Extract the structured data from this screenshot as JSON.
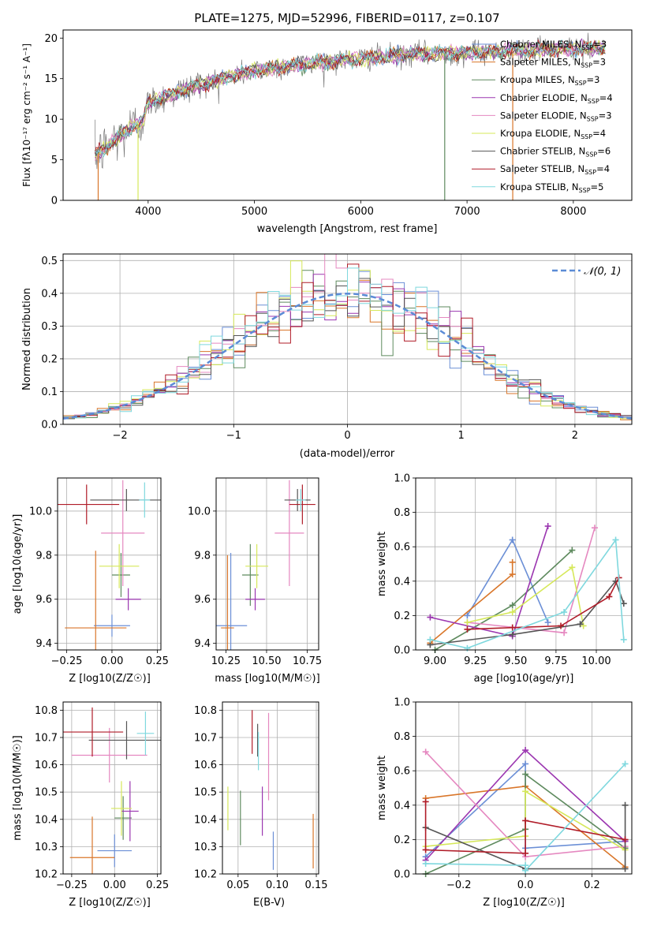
{
  "title": "PLATE=1275, MJD=52996, FIBERID=0117, z=0.107",
  "colors": [
    "#6b8fd6",
    "#d9762a",
    "#5e8a5e",
    "#9b36b0",
    "#e588c0",
    "#d6e85a",
    "#555555",
    "#b01c28",
    "#7fd8de"
  ],
  "chart_data": [
    {
      "id": "spectrum",
      "type": "line",
      "title": "PLATE=1275, MJD=52996, FIBERID=0117, z=0.107",
      "xlabel": "wavelength [Angstrom, rest frame]",
      "ylabel": "Flux [fλ10⁻¹⁷ erg cm⁻² s⁻¹ A⁻¹]",
      "xlim": [
        3200,
        8550
      ],
      "ylim": [
        0,
        21
      ],
      "xticks": [
        4000,
        5000,
        6000,
        7000,
        8000
      ],
      "yticks": [
        0,
        5,
        10,
        15,
        20
      ],
      "legend_position": "top-right",
      "continuum": {
        "x": [
          3500,
          3700,
          3900,
          3950,
          4000,
          4300,
          4600,
          5000,
          5300,
          5600,
          6000,
          6500,
          7000,
          7500,
          8000,
          8300
        ],
        "y": [
          5.5,
          7.5,
          9.5,
          9.8,
          12.0,
          13.5,
          14.7,
          16.0,
          16.5,
          17.0,
          17.5,
          18.0,
          18.2,
          18.5,
          18.7,
          18.8
        ]
      },
      "series": [
        {
          "name": "Chabrier MILES, N_SSP=3"
        },
        {
          "name": "Salpeter MILES, N_SSP=3"
        },
        {
          "name": "Kroupa MILES, N_SSP=3"
        },
        {
          "name": "Chabrier ELODIE, N_SSP=4"
        },
        {
          "name": "Salpeter ELODIE, N_SSP=3"
        },
        {
          "name": "Kroupa ELODIE, N_SSP=4"
        },
        {
          "name": "Chabrier STELIB, N_SSP=6"
        },
        {
          "name": "Salpeter STELIB, N_SSP=4"
        },
        {
          "name": "Kroupa STELIB, N_SSP=5"
        }
      ]
    },
    {
      "id": "residuals",
      "type": "area",
      "xlabel": "(data-model)/error",
      "ylabel": "Normed distribution",
      "xlim": [
        -2.5,
        2.5
      ],
      "ylim": [
        0,
        0.52
      ],
      "xticks": [
        -2,
        -1,
        0,
        1,
        2
      ],
      "yticks": [
        0.0,
        0.1,
        0.2,
        0.3,
        0.4,
        0.5
      ],
      "bin_width": 0.1,
      "grid": true,
      "legend_position": "top-right",
      "gauss_label": "𝒩(0, 1)"
    },
    {
      "id": "z-age",
      "type": "scatter",
      "xlabel": "Z [log10(Z/Z☉)]",
      "ylabel": "age  [log10(age/yr)]",
      "xlim": [
        -0.3,
        0.27
      ],
      "ylim": [
        9.37,
        10.15
      ],
      "xticks": [
        -0.25,
        0.0,
        0.25
      ],
      "yticks": [
        9.4,
        9.6,
        9.8,
        10.0
      ],
      "grid": true,
      "points": [
        {
          "x": 0.0,
          "xerr": 0.1,
          "y": 9.48,
          "yerr": 0.05
        },
        {
          "x": -0.09,
          "xerr": 0.17,
          "y": 9.47,
          "yerr": 0.35
        },
        {
          "x": 0.05,
          "xerr": 0.05,
          "y": 9.71,
          "yerr": 0.1
        },
        {
          "x": 0.09,
          "xerr": 0.07,
          "y": 9.6,
          "yerr": 0.05
        },
        {
          "x": 0.06,
          "xerr": 0.12,
          "y": 9.9,
          "yerr": 0.24
        },
        {
          "x": 0.04,
          "xerr": 0.11,
          "y": 9.75,
          "yerr": 0.1
        },
        {
          "x": 0.08,
          "xerr": 0.2,
          "y": 10.05,
          "yerr": 0.05
        },
        {
          "x": -0.14,
          "xerr": 0.18,
          "y": 10.03,
          "yerr": 0.09
        },
        {
          "x": 0.18,
          "xerr": 0.03,
          "y": 10.05,
          "yerr": 0.08
        }
      ]
    },
    {
      "id": "mass-age",
      "type": "scatter",
      "xlabel": "mass [log10(M/M☉)]",
      "xlim": [
        10.19,
        10.82
      ],
      "ylim": [
        9.37,
        10.15
      ],
      "xticks": [
        10.25,
        10.5,
        10.75
      ],
      "yticks": [
        9.4,
        9.6,
        9.8,
        10.0
      ],
      "grid": true,
      "points": [
        {
          "x": 10.28,
          "xerr": 0.1,
          "y": 9.48,
          "yerr": 0.33
        },
        {
          "x": 10.26,
          "xerr": 0.04,
          "y": 9.47,
          "yerr": 0.33
        },
        {
          "x": 10.4,
          "xerr": 0.05,
          "y": 9.71,
          "yerr": 0.14
        },
        {
          "x": 10.43,
          "xerr": 0.06,
          "y": 9.6,
          "yerr": 0.05
        },
        {
          "x": 10.64,
          "xerr": 0.09,
          "y": 9.9,
          "yerr": 0.24
        },
        {
          "x": 10.44,
          "xerr": 0.07,
          "y": 9.75,
          "yerr": 0.1
        },
        {
          "x": 10.69,
          "xerr": 0.08,
          "y": 10.05,
          "yerr": 0.05
        },
        {
          "x": 10.72,
          "xerr": 0.08,
          "y": 10.03,
          "yerr": 0.09
        },
        {
          "x": 10.71,
          "xerr": 0.03,
          "y": 10.05,
          "yerr": 0.05
        }
      ]
    },
    {
      "id": "weight-age",
      "type": "line",
      "xlabel": "age  [log10(age/yr)]",
      "ylabel": "mass weight",
      "xlim": [
        8.88,
        10.22
      ],
      "ylim": [
        0,
        1.0
      ],
      "xticks": [
        9.0,
        9.25,
        9.5,
        9.75,
        10.0
      ],
      "yticks": [
        0.0,
        0.2,
        0.4,
        0.6,
        0.8,
        1.0
      ],
      "grid": true,
      "series": [
        {
          "x": [
            9.2,
            9.48,
            9.7
          ],
          "y": [
            0.2,
            0.64,
            0.16
          ]
        },
        {
          "x": [
            8.97,
            9.48,
            9.48
          ],
          "y": [
            0.04,
            0.44,
            0.51
          ]
        },
        {
          "x": [
            9.0,
            9.48,
            9.85
          ],
          "y": [
            0.0,
            0.26,
            0.58
          ]
        },
        {
          "x": [
            8.97,
            9.48,
            9.7
          ],
          "y": [
            0.19,
            0.08,
            0.72
          ]
        },
        {
          "x": [
            9.2,
            9.8,
            9.99
          ],
          "y": [
            0.16,
            0.1,
            0.71
          ]
        },
        {
          "x": [
            9.2,
            9.48,
            9.85,
            9.92
          ],
          "y": [
            0.16,
            0.22,
            0.48,
            0.14
          ]
        },
        {
          "x": [
            8.97,
            9.48,
            9.9,
            10.12,
            10.17
          ],
          "y": [
            0.03,
            0.09,
            0.15,
            0.4,
            0.27
          ]
        },
        {
          "x": [
            9.2,
            9.48,
            9.78,
            10.08,
            10.14
          ],
          "y": [
            0.12,
            0.13,
            0.14,
            0.31,
            0.42
          ]
        },
        {
          "x": [
            8.97,
            9.2,
            9.8,
            10.12,
            10.17
          ],
          "y": [
            0.06,
            0.01,
            0.22,
            0.64,
            0.06
          ]
        }
      ]
    },
    {
      "id": "z-mass",
      "type": "scatter",
      "xlabel": "Z [log10(Z/Z☉)]",
      "ylabel": "mass [log10(M/M☉)]",
      "xlim": [
        -0.3,
        0.27
      ],
      "ylim": [
        10.2,
        10.83
      ],
      "xticks": [
        -0.25,
        0.0,
        0.25
      ],
      "yticks": [
        10.2,
        10.3,
        10.4,
        10.5,
        10.6,
        10.7,
        10.8
      ],
      "grid": true,
      "points": [
        {
          "x": 0.0,
          "xerr": 0.1,
          "y": 10.285,
          "yerr": 0.06
        },
        {
          "x": -0.13,
          "xerr": 0.13,
          "y": 10.26,
          "yerr": 0.15
        },
        {
          "x": 0.05,
          "xerr": 0.05,
          "y": 10.405,
          "yerr": 0.08
        },
        {
          "x": 0.09,
          "xerr": 0.05,
          "y": 10.43,
          "yerr": 0.11
        },
        {
          "x": -0.03,
          "xerr": 0.22,
          "y": 10.635,
          "yerr": 0.1
        },
        {
          "x": 0.04,
          "xerr": 0.06,
          "y": 10.44,
          "yerr": 0.1
        },
        {
          "x": 0.07,
          "xerr": 0.22,
          "y": 10.69,
          "yerr": 0.07
        },
        {
          "x": -0.13,
          "xerr": 0.18,
          "y": 10.72,
          "yerr": 0.09
        },
        {
          "x": 0.18,
          "xerr": 0.05,
          "y": 10.715,
          "yerr": 0.08
        }
      ]
    },
    {
      "id": "ebv-mass",
      "type": "scatter",
      "xlabel": "E(B-V)",
      "xlim": [
        0.03,
        0.153
      ],
      "ylim": [
        10.2,
        10.83
      ],
      "xticks": [
        0.05,
        0.1,
        0.15
      ],
      "yticks": [
        10.2,
        10.3,
        10.4,
        10.5,
        10.6,
        10.7,
        10.8
      ],
      "grid": true,
      "points": [
        {
          "x": 0.095,
          "y": 10.285,
          "yerr": 0.07
        },
        {
          "x": 0.146,
          "y": 10.32,
          "yerr": 0.1
        },
        {
          "x": 0.053,
          "y": 10.405,
          "yerr": 0.1
        },
        {
          "x": 0.081,
          "y": 10.43,
          "yerr": 0.09
        },
        {
          "x": 0.089,
          "y": 10.63,
          "yerr": 0.16
        },
        {
          "x": 0.037,
          "y": 10.44,
          "yerr": 0.08
        },
        {
          "x": 0.075,
          "y": 10.69,
          "yerr": 0.06
        },
        {
          "x": 0.068,
          "y": 10.72,
          "yerr": 0.08
        },
        {
          "x": 0.076,
          "y": 10.65,
          "yerr": 0.07
        }
      ]
    },
    {
      "id": "weight-z",
      "type": "line",
      "xlabel": "Z [log10(Z/Z☉)]",
      "ylabel": "mass weight",
      "xlim": [
        -0.33,
        0.32
      ],
      "ylim": [
        0,
        1.0
      ],
      "xticks": [
        -0.2,
        0.0,
        0.2
      ],
      "yticks": [
        0.0,
        0.2,
        0.4,
        0.6,
        0.8,
        1.0
      ],
      "grid": true,
      "series": [
        {
          "x": [
            -0.3,
            0.0,
            0.0,
            0.3
          ],
          "y": [
            0.1,
            0.64,
            0.15,
            0.19
          ]
        },
        {
          "x": [
            -0.3,
            0.0,
            0.3
          ],
          "y": [
            0.44,
            0.51,
            0.04
          ]
        },
        {
          "x": [
            -0.3,
            0.0,
            0.0,
            0.3
          ],
          "y": [
            0.0,
            0.26,
            0.58,
            0.15
          ]
        },
        {
          "x": [
            -0.3,
            0.0,
            0.3
          ],
          "y": [
            0.08,
            0.72,
            0.19
          ]
        },
        {
          "x": [
            -0.3,
            0.0,
            0.3
          ],
          "y": [
            0.71,
            0.1,
            0.16
          ]
        },
        {
          "x": [
            -0.3,
            0.0,
            0.0,
            0.3
          ],
          "y": [
            0.16,
            0.22,
            0.48,
            0.14
          ]
        },
        {
          "x": [
            -0.3,
            0.0,
            0.3,
            0.3
          ],
          "y": [
            0.27,
            0.03,
            0.03,
            0.4
          ]
        },
        {
          "x": [
            -0.3,
            -0.3,
            0.0,
            0.0,
            0.3
          ],
          "y": [
            0.42,
            0.14,
            0.12,
            0.31,
            0.2
          ]
        },
        {
          "x": [
            -0.3,
            0.0,
            0.0,
            0.3
          ],
          "y": [
            0.06,
            0.05,
            0.02,
            0.64
          ]
        }
      ]
    }
  ]
}
